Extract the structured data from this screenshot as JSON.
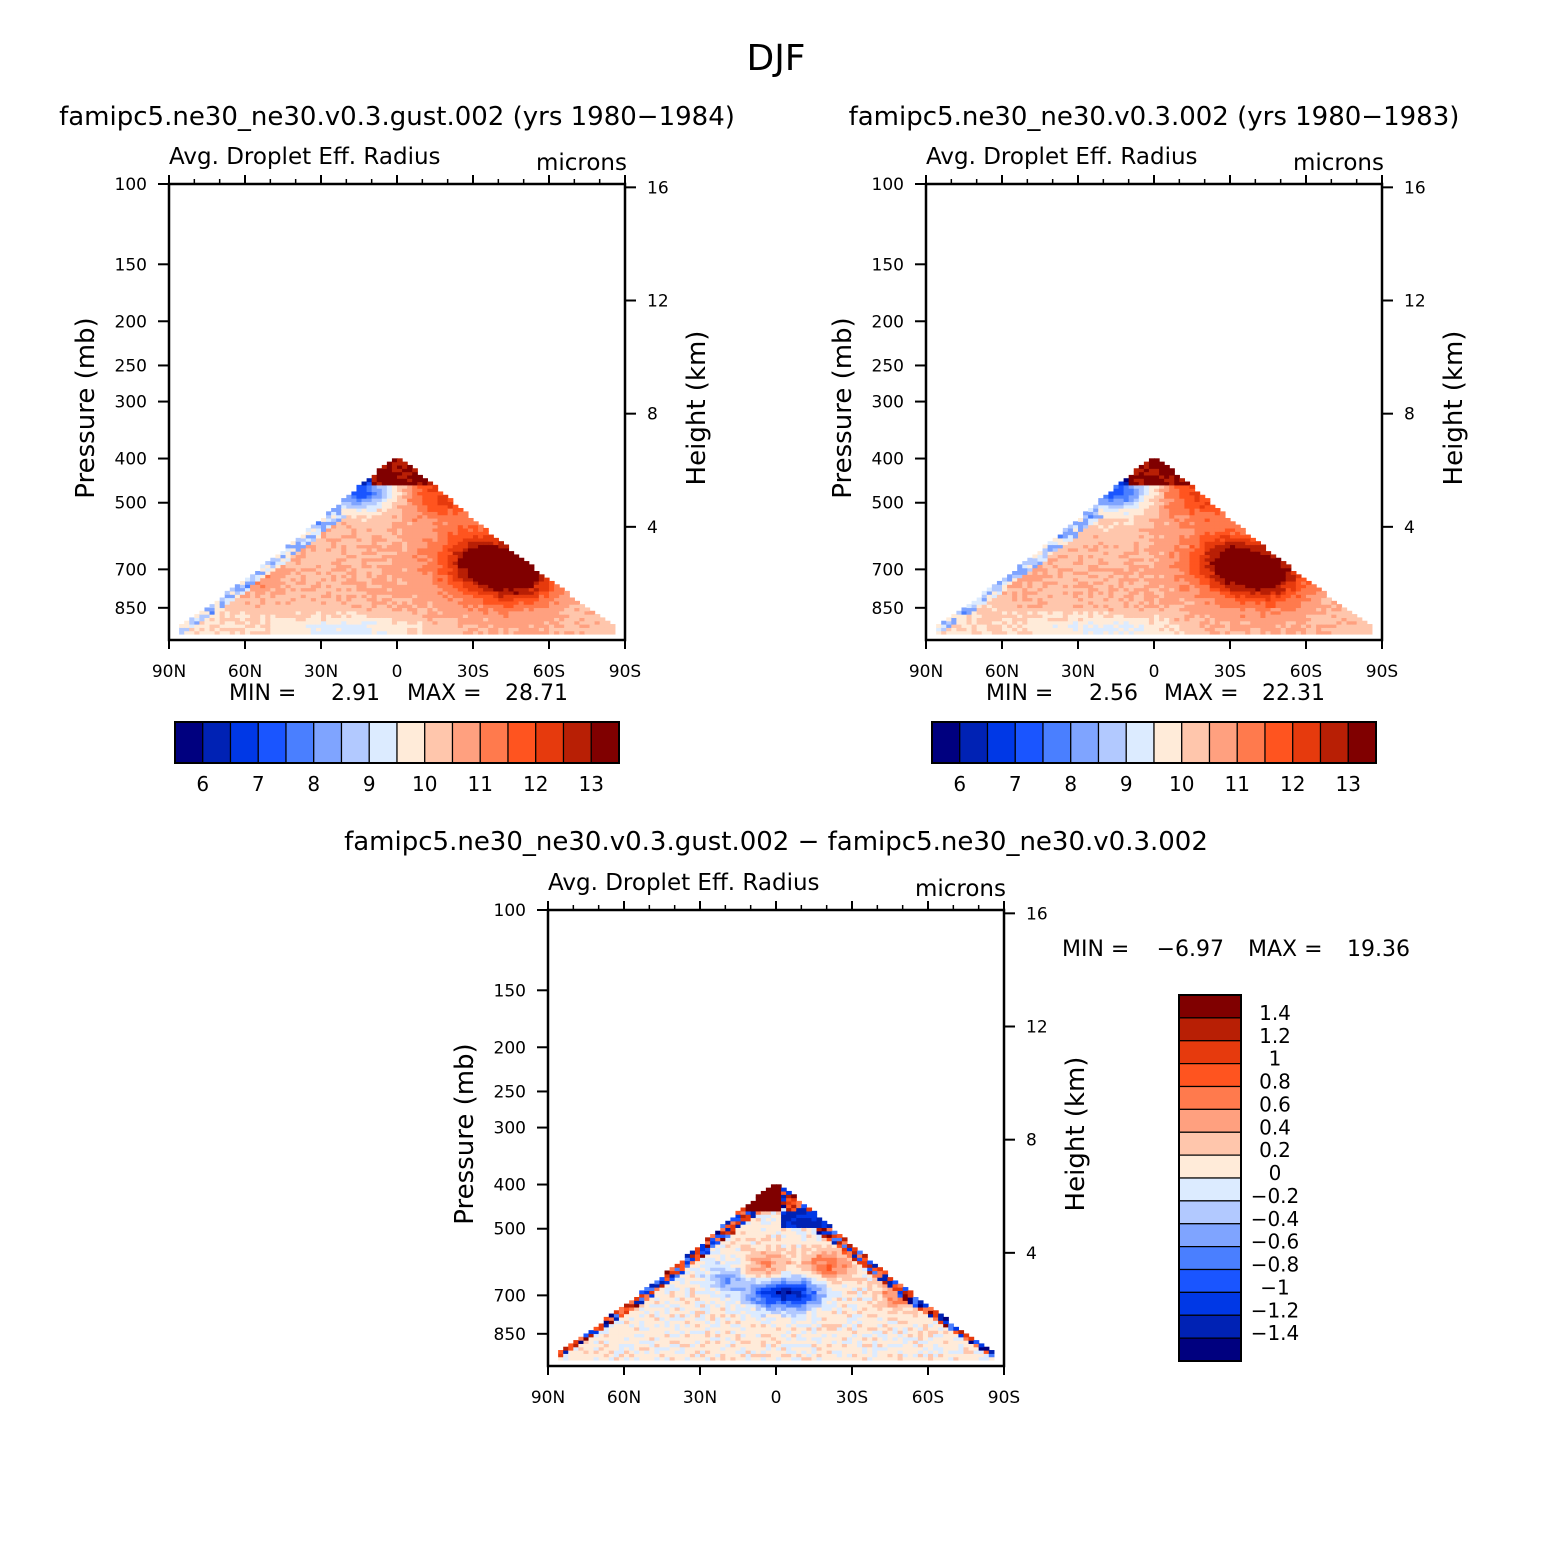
{
  "page": {
    "title": "DJF"
  },
  "palette": {
    "sequential": [
      "#00007f",
      "#0022b4",
      "#0038e6",
      "#1a55ff",
      "#4a7fff",
      "#7fa4ff",
      "#b2c9ff",
      "#dcebff",
      "#ffebd9",
      "#ffc6ac",
      "#ffa07f",
      "#ff7a4d",
      "#ff541f",
      "#e63a0d",
      "#b81f05",
      "#800000"
    ],
    "diverging": [
      "#00007f",
      "#0022b4",
      "#0038e6",
      "#1a55ff",
      "#4a7fff",
      "#7fa4ff",
      "#b2c9ff",
      "#dcebff",
      "#ffebd9",
      "#ffc6ac",
      "#ffa07f",
      "#ff7a4d",
      "#ff541f",
      "#e63a0d",
      "#b81f05",
      "#800000"
    ]
  },
  "chart_data": [
    {
      "id": "panel_a",
      "type": "heatmap",
      "title": "famipc5.ne30_ne30.v0.3.gust.002 (yrs 1980−1984)",
      "subtitle_left": "Avg. Droplet Eff. Radius",
      "subtitle_right": "microns",
      "ylabel": "Pressure (mb)",
      "ylabel_right": "Height (km)",
      "x_ticks": [
        "90N",
        "60N",
        "30N",
        "0",
        "30S",
        "60S",
        "90S"
      ],
      "x_range": [
        90,
        -90
      ],
      "y_scale": "log",
      "y_range": [
        1000,
        100
      ],
      "y_ticks": [
        100,
        150,
        200,
        250,
        300,
        400,
        500,
        700,
        850
      ],
      "y_right_ticks": [
        16,
        12,
        8,
        4
      ],
      "stats": {
        "min_label": "MIN =",
        "min": "2.91",
        "max_label": "MAX =",
        "max": "28.71"
      },
      "colorbar": {
        "orientation": "horizontal",
        "labels": [
          "6",
          "7",
          "8",
          "9",
          "10",
          "11",
          "12",
          "13"
        ]
      },
      "field": {
        "low_blob_value": 9.3,
        "blob_centers": [
          [
            -33,
            670,
            13.3
          ],
          [
            -48,
            720,
            13.4
          ],
          [
            15,
            560,
            10.4
          ],
          [
            -20,
            470,
            12.3
          ],
          [
            55,
            720,
            10.9
          ]
        ],
        "top_band": [
          [
            -5,
            410,
            13.0
          ],
          [
            20,
            420,
            6.0
          ]
        ]
      }
    },
    {
      "id": "panel_b",
      "type": "heatmap",
      "title": "famipc5.ne30_ne30.v0.3.002 (yrs 1980−1983)",
      "subtitle_left": "Avg. Droplet Eff. Radius",
      "subtitle_right": "microns",
      "ylabel": "Pressure (mb)",
      "ylabel_right": "Height (km)",
      "x_ticks": [
        "90N",
        "60N",
        "30N",
        "0",
        "30S",
        "60S",
        "90S"
      ],
      "x_range": [
        90,
        -90
      ],
      "y_scale": "log",
      "y_range": [
        1000,
        100
      ],
      "y_ticks": [
        100,
        150,
        200,
        250,
        300,
        400,
        500,
        700,
        850
      ],
      "y_right_ticks": [
        16,
        12,
        8,
        4
      ],
      "stats": {
        "min_label": "MIN =",
        "min": "2.56",
        "max_label": "MAX =",
        "max": "22.31"
      },
      "colorbar": {
        "orientation": "horizontal",
        "labels": [
          "6",
          "7",
          "8",
          "9",
          "10",
          "11",
          "12",
          "13"
        ]
      },
      "field": {
        "low_blob_value": 9.3,
        "blob_centers": [
          [
            -30,
            670,
            13.0
          ],
          [
            -45,
            720,
            13.2
          ],
          [
            15,
            560,
            10.2
          ],
          [
            -20,
            470,
            12.2
          ],
          [
            55,
            720,
            10.7
          ]
        ],
        "top_band": [
          [
            -5,
            410,
            13.0
          ],
          [
            20,
            420,
            6.0
          ]
        ]
      }
    },
    {
      "id": "panel_c",
      "type": "heatmap",
      "title": "famipc5.ne30_ne30.v0.3.gust.002 − famipc5.ne30_ne30.v0.3.002",
      "subtitle_left": "Avg. Droplet Eff. Radius",
      "subtitle_right": "microns",
      "ylabel": "Pressure (mb)",
      "ylabel_right": "Height (km)",
      "x_ticks": [
        "90N",
        "60N",
        "30N",
        "0",
        "30S",
        "60S",
        "90S"
      ],
      "x_range": [
        90,
        -90
      ],
      "y_scale": "log",
      "y_range": [
        1000,
        100
      ],
      "y_ticks": [
        100,
        150,
        200,
        250,
        300,
        400,
        500,
        700,
        850
      ],
      "y_right_ticks": [
        16,
        12,
        8,
        4
      ],
      "stats": {
        "min_label": "MIN =",
        "min": "−6.97",
        "max_label": "MAX =",
        "max": "19.36"
      },
      "colorbar": {
        "orientation": "vertical",
        "labels": [
          "1.4",
          "1.2",
          "1",
          "0.8",
          "0.6",
          "0.4",
          "0.2",
          "0",
          "−0.2",
          "−0.4",
          "−0.6",
          "−0.8",
          "−1",
          "−1.2",
          "−1.4"
        ]
      },
      "field": {
        "blob_centers": [
          [
            2,
            690,
            -1.1
          ],
          [
            -10,
            690,
            -1.0
          ],
          [
            18,
            640,
            -0.6
          ],
          [
            -20,
            600,
            0.7
          ],
          [
            5,
            610,
            0.6
          ],
          [
            -50,
            690,
            0.7
          ]
        ],
        "top_band": [
          [
            5,
            410,
            1.4
          ],
          [
            -10,
            470,
            -1.0
          ]
        ]
      }
    }
  ]
}
